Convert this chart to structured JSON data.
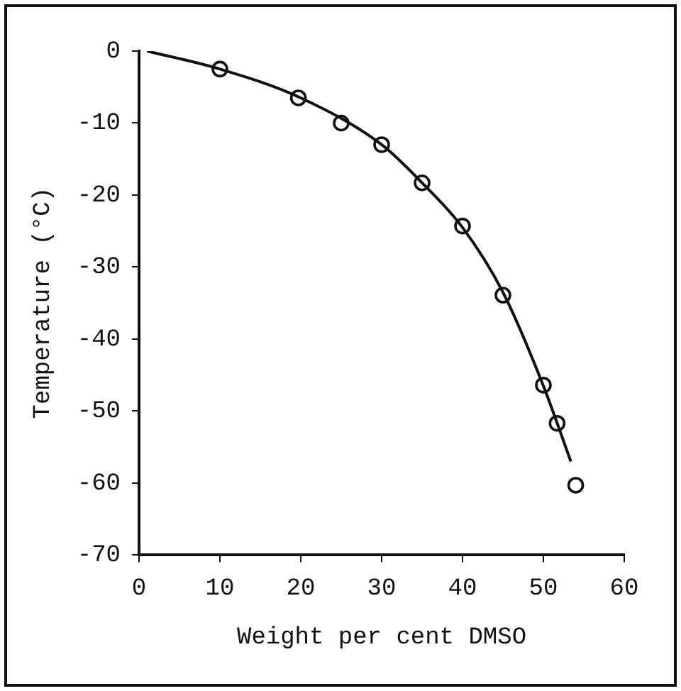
{
  "chart_data": {
    "type": "scatter",
    "xlabel": "Weight per cent DMSO",
    "ylabel": "Temperature (°C)",
    "xlim": [
      0,
      60
    ],
    "ylim": [
      -70,
      0
    ],
    "xticks": [
      0,
      10,
      20,
      30,
      40,
      50,
      60
    ],
    "yticks": [
      0,
      -10,
      -20,
      -30,
      -40,
      -50,
      -60,
      -70
    ],
    "grid": false,
    "legend": false,
    "marker": "circle",
    "series": [
      {
        "color": "#111111",
        "x": [
          10,
          19.7,
          25,
          30,
          35,
          40,
          45,
          50,
          51.7,
          54
        ],
        "values": [
          -2.5,
          -6.5,
          -10,
          -13,
          -18.3,
          -24.3,
          -33.9,
          -46.4,
          -51.7,
          -60.3
        ]
      },
      {
        "type": "line",
        "color": "#111111",
        "line_style": "solid",
        "marker": "none",
        "x": [
          1,
          10,
          20,
          30,
          35,
          40,
          45,
          50,
          53.4
        ],
        "values": [
          0,
          -2.5,
          -6.5,
          -13,
          -18.3,
          -24.5,
          -33.5,
          -46.5,
          -57
        ]
      }
    ]
  }
}
